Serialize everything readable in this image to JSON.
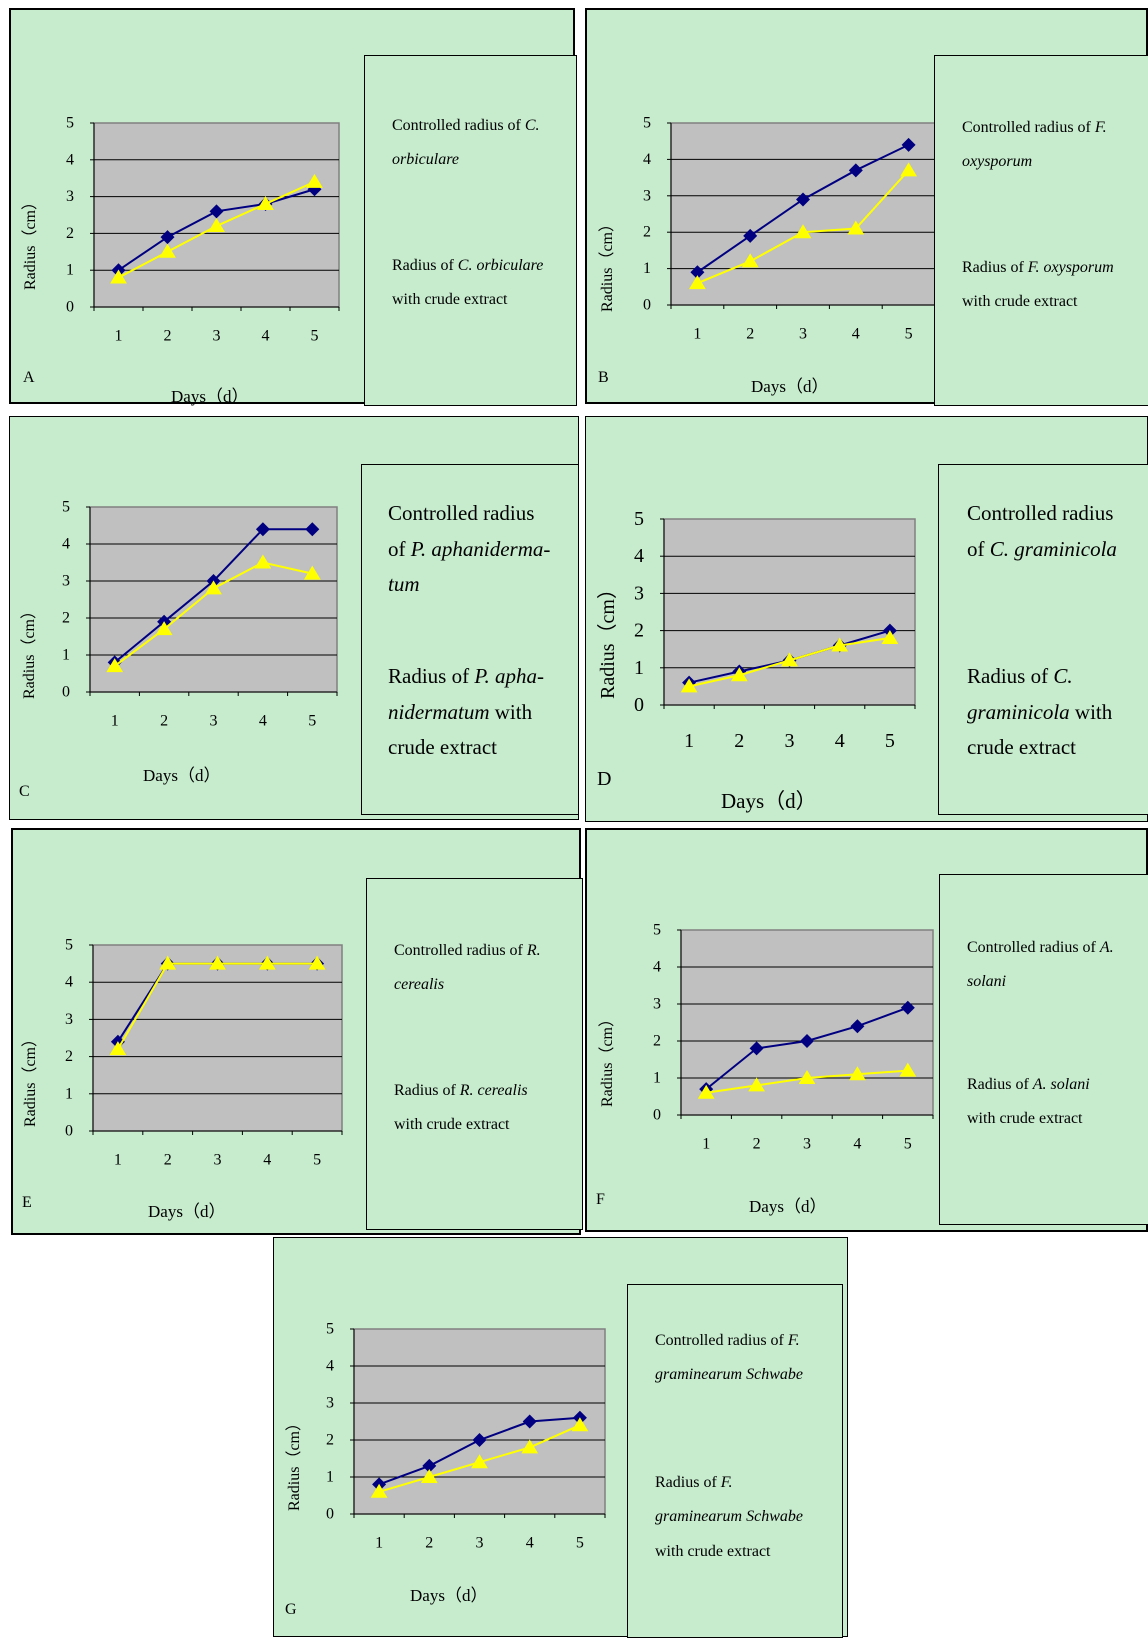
{
  "colors": {
    "panel_bg": "#c6ebcd",
    "plot_bg": "#c0c0c0",
    "controlled": "#000080",
    "crude": "#ffff00"
  },
  "chart_data": [
    {
      "id": "A",
      "type": "line",
      "panel_label": "A",
      "xlabel": "Days（d）",
      "ylabel": "Radius（cm）",
      "x": [
        1,
        2,
        3,
        4,
        5
      ],
      "ylim": [
        0,
        5
      ],
      "yticks": [
        0,
        1,
        2,
        3,
        4,
        5
      ],
      "grid": true,
      "series": [
        {
          "name": "Controlled radius of C. orbiculare",
          "marker": "diamond",
          "values": [
            1.0,
            1.9,
            2.6,
            2.8,
            3.2
          ]
        },
        {
          "name": "Radius of C. orbiculare with crude extract",
          "marker": "triangle",
          "values": [
            0.8,
            1.5,
            2.2,
            2.8,
            3.4
          ]
        }
      ],
      "legend": [
        [
          {
            "t": "Controlled radius of "
          },
          {
            "t": "C.",
            "i": true
          },
          {
            "br": true
          },
          {
            "t": "orbiculare",
            "i": true
          }
        ],
        [
          {
            "t": "Radius of "
          },
          {
            "t": "C. orbiculare",
            "i": true
          },
          {
            "br": true
          },
          {
            "t": "with crude extract"
          }
        ]
      ]
    },
    {
      "id": "B",
      "type": "line",
      "panel_label": "B",
      "xlabel": "Days（d）",
      "ylabel": "Radius（cm）",
      "x": [
        1,
        2,
        3,
        4,
        5
      ],
      "ylim": [
        0,
        5
      ],
      "yticks": [
        0,
        1,
        2,
        3,
        4,
        5
      ],
      "grid": true,
      "series": [
        {
          "name": "Controlled radius of F. oxysporum",
          "marker": "diamond",
          "values": [
            0.9,
            1.9,
            2.9,
            3.7,
            4.4
          ]
        },
        {
          "name": "Radius of F. oxysporum with crude extract",
          "marker": "triangle",
          "values": [
            0.6,
            1.2,
            2.0,
            2.1,
            3.7
          ]
        }
      ],
      "legend": [
        [
          {
            "t": "Controlled radius of "
          },
          {
            "t": "F.",
            "i": true
          },
          {
            "br": true
          },
          {
            "t": "oxysporum",
            "i": true
          }
        ],
        [
          {
            "t": "Radius of "
          },
          {
            "t": "F. oxysporum",
            "i": true
          },
          {
            "br": true
          },
          {
            "t": "with crude extract"
          }
        ]
      ]
    },
    {
      "id": "C",
      "type": "line",
      "panel_label": "C",
      "xlabel": "Days（d）",
      "ylabel": "Radius（cm）",
      "x": [
        1,
        2,
        3,
        4,
        5
      ],
      "ylim": [
        0,
        5
      ],
      "yticks": [
        0,
        1,
        2,
        3,
        4,
        5
      ],
      "grid": true,
      "series": [
        {
          "name": "Controlled radius of P. aphanidermatum",
          "marker": "diamond",
          "values": [
            0.8,
            1.9,
            3.0,
            4.4,
            4.4
          ]
        },
        {
          "name": "Radius of P. aphanidermatum with crude extract",
          "marker": "triangle",
          "values": [
            0.7,
            1.7,
            2.8,
            3.5,
            3.2
          ]
        }
      ],
      "legend": [
        [
          {
            "t": "Controlled radius"
          },
          {
            "br": true
          },
          {
            "t": "of "
          },
          {
            "t": "P. aphaniderma-",
            "i": true
          },
          {
            "br": true
          },
          {
            "t": "tum",
            "i": true
          }
        ],
        [
          {
            "t": "Radius of "
          },
          {
            "t": "P. apha-",
            "i": true
          },
          {
            "br": true
          },
          {
            "t": "nidermatum",
            "i": true
          },
          {
            "t": " with"
          },
          {
            "br": true
          },
          {
            "t": "crude extract"
          }
        ]
      ]
    },
    {
      "id": "D",
      "type": "line",
      "panel_label": "D",
      "xlabel": "Days（d）",
      "ylabel": "Radius（cm）",
      "x": [
        1,
        2,
        3,
        4,
        5
      ],
      "ylim": [
        0,
        5
      ],
      "yticks": [
        0,
        1,
        2,
        3,
        4,
        5
      ],
      "grid": true,
      "series": [
        {
          "name": "Controlled radius of C. graminicola",
          "marker": "diamond",
          "values": [
            0.6,
            0.9,
            1.2,
            1.6,
            2.0
          ]
        },
        {
          "name": "Radius of C. graminicola with crude extract",
          "marker": "triangle",
          "values": [
            0.5,
            0.8,
            1.2,
            1.6,
            1.8
          ]
        }
      ],
      "legend": [
        [
          {
            "t": "Controlled radius"
          },
          {
            "br": true
          },
          {
            "t": "of "
          },
          {
            "t": "C. graminicola",
            "i": true
          }
        ],
        [
          {
            "t": "Radius of "
          },
          {
            "t": "C.",
            "i": true
          },
          {
            "br": true
          },
          {
            "t": "graminicola",
            "i": true
          },
          {
            "t": " with"
          },
          {
            "br": true
          },
          {
            "t": "crude extract"
          }
        ]
      ]
    },
    {
      "id": "E",
      "type": "line",
      "panel_label": "E",
      "xlabel": "Days（d）",
      "ylabel": "Radius（cm）",
      "x": [
        1,
        2,
        3,
        4,
        5
      ],
      "ylim": [
        0,
        5
      ],
      "yticks": [
        0,
        1,
        2,
        3,
        4,
        5
      ],
      "grid": true,
      "series": [
        {
          "name": "Controlled radius of R. cerealis",
          "marker": "diamond",
          "values": [
            2.4,
            4.5,
            4.5,
            4.5,
            4.5
          ]
        },
        {
          "name": "Radius of R. cerealis with crude extract",
          "marker": "triangle",
          "values": [
            2.2,
            4.5,
            4.5,
            4.5,
            4.5
          ]
        }
      ],
      "legend": [
        [
          {
            "t": "Controlled radius of "
          },
          {
            "t": "R.",
            "i": true
          },
          {
            "br": true
          },
          {
            "t": "cerealis",
            "i": true
          }
        ],
        [
          {
            "t": "Radius of "
          },
          {
            "t": "R. cerealis",
            "i": true
          },
          {
            "br": true
          },
          {
            "t": "with crude extract"
          }
        ]
      ]
    },
    {
      "id": "F",
      "type": "line",
      "panel_label": "F",
      "xlabel": "Days（d）",
      "ylabel": "Radius（cm）",
      "x": [
        1,
        2,
        3,
        4,
        5
      ],
      "ylim": [
        0,
        5
      ],
      "yticks": [
        0,
        1,
        2,
        3,
        4,
        5
      ],
      "grid": true,
      "series": [
        {
          "name": "Controlled radius of A. solani",
          "marker": "diamond",
          "values": [
            0.7,
            1.8,
            2.0,
            2.4,
            2.9
          ]
        },
        {
          "name": "Radius of A. solani with crude extract",
          "marker": "triangle",
          "values": [
            0.6,
            0.8,
            1.0,
            1.1,
            1.2
          ]
        }
      ],
      "legend": [
        [
          {
            "t": "Controlled radius of "
          },
          {
            "t": "A.",
            "i": true
          },
          {
            "br": true
          },
          {
            "t": "solani",
            "i": true
          }
        ],
        [
          {
            "t": "Radius of "
          },
          {
            "t": "A. solani",
            "i": true
          },
          {
            "br": true
          },
          {
            "t": "with crude extract"
          }
        ]
      ]
    },
    {
      "id": "G",
      "type": "line",
      "panel_label": "G",
      "xlabel": "Days（d）",
      "ylabel": "Radius（cm）",
      "x": [
        1,
        2,
        3,
        4,
        5
      ],
      "ylim": [
        0,
        5
      ],
      "yticks": [
        0,
        1,
        2,
        3,
        4,
        5
      ],
      "grid": true,
      "series": [
        {
          "name": "Controlled radius of F. graminearum Schwabe",
          "marker": "diamond",
          "values": [
            0.8,
            1.3,
            2.0,
            2.5,
            2.6
          ]
        },
        {
          "name": "Radius of F. graminearum Schwabe with crude extract",
          "marker": "triangle",
          "values": [
            0.6,
            1.0,
            1.4,
            1.8,
            2.4
          ]
        }
      ],
      "legend": [
        [
          {
            "t": "Controlled radius of "
          },
          {
            "t": "F.",
            "i": true
          },
          {
            "br": true
          },
          {
            "t": "graminearum Schwabe",
            "i": true
          }
        ],
        [
          {
            "t": "Radius of "
          },
          {
            "t": "F.",
            "i": true
          },
          {
            "br": true
          },
          {
            "t": "graminearum Schwabe",
            "i": true
          },
          {
            "br": true
          },
          {
            "t": "with crude extract"
          }
        ]
      ]
    }
  ]
}
